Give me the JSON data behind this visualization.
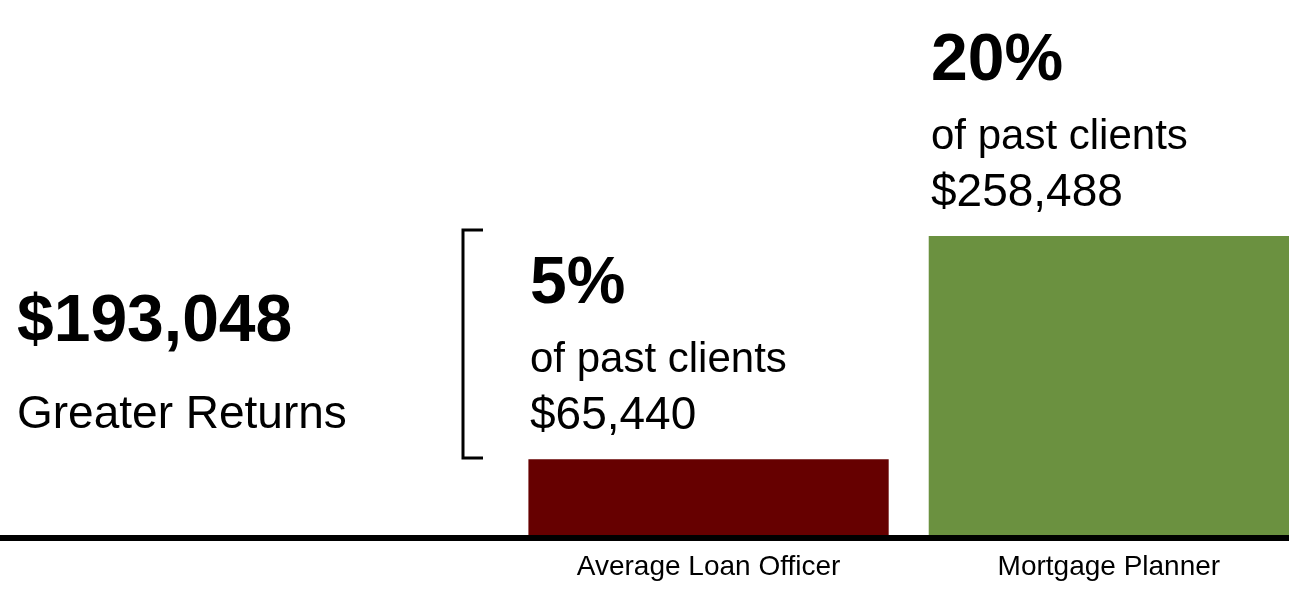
{
  "chart_data": {
    "type": "bar",
    "categories": [
      "Average Loan Officer",
      "Mortgage Planner"
    ],
    "values": [
      65440,
      258488
    ],
    "colors": [
      "#660000",
      "#6b9140"
    ],
    "value_labels": [
      "$65,440",
      "$258,488"
    ],
    "ylim": [
      0,
      462500
    ],
    "annotations": [
      "$193,048",
      "Greater Returns",
      {
        "text": "5%",
        "x": "Average Loan Officer",
        "y": 65440
      },
      {
        "text": "of past clients",
        "x": "Average Loan Officer",
        "y": 65440
      },
      {
        "text": "20%",
        "x": "Mortgage Planner",
        "y": 258488
      },
      {
        "text": "of past clients",
        "x": "Mortgage Planner",
        "y": 258488
      }
    ]
  }
}
